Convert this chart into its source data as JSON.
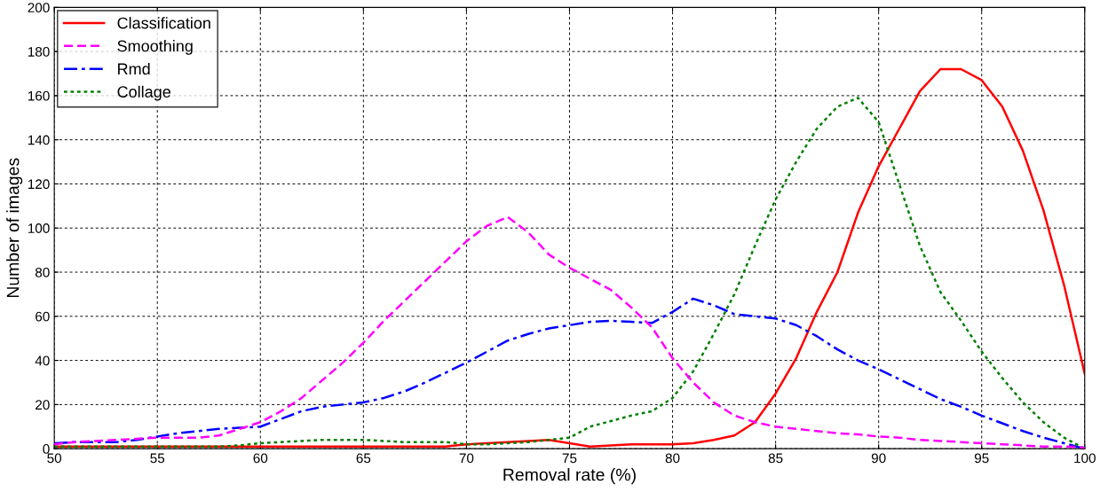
{
  "chart_data": {
    "type": "line",
    "xlabel": "Removal rate (%)",
    "ylabel": "Number of images",
    "x": [
      50,
      51,
      52,
      53,
      54,
      55,
      56,
      57,
      58,
      59,
      60,
      61,
      62,
      63,
      64,
      65,
      66,
      67,
      68,
      69,
      70,
      71,
      72,
      73,
      74,
      75,
      76,
      77,
      78,
      79,
      80,
      81,
      82,
      83,
      84,
      85,
      86,
      87,
      88,
      89,
      90,
      91,
      92,
      93,
      94,
      95,
      96,
      97,
      98,
      99,
      100
    ],
    "series": [
      {
        "name": "Classification",
        "color": "#ff0000",
        "line_style": "solid",
        "values": [
          1,
          1,
          1,
          1,
          1,
          1,
          1,
          1,
          1,
          1,
          1,
          1,
          1,
          1,
          1,
          1,
          1,
          1,
          1,
          1,
          2,
          2.5,
          3,
          3.5,
          4,
          2.5,
          1,
          1.5,
          2,
          2,
          2,
          2.5,
          4,
          6,
          12,
          25,
          41,
          62,
          80,
          107,
          128,
          145,
          162,
          172,
          172,
          167,
          155,
          135,
          108,
          74,
          34
        ]
      },
      {
        "name": "Smoothing",
        "color": "#ff00ff",
        "line_style": "dashed",
        "values": [
          2,
          3,
          3.5,
          4,
          4.5,
          5,
          5,
          5,
          6,
          9,
          12,
          17,
          23,
          31,
          39,
          48,
          58,
          67,
          76,
          85,
          94,
          101,
          105,
          98,
          88,
          82,
          77,
          72,
          64,
          55,
          41,
          30,
          21,
          15,
          12,
          10,
          9,
          8,
          7,
          6.5,
          5.5,
          5,
          4,
          3.5,
          3,
          2.5,
          2,
          1.5,
          1,
          1,
          0.5
        ]
      },
      {
        "name": "Rmd",
        "color": "#0000ff",
        "line_style": "dashdot",
        "values": [
          2.5,
          3,
          3,
          3,
          4,
          5.5,
          7,
          8,
          9,
          9.5,
          10,
          13.5,
          17,
          19,
          20,
          21,
          23,
          26,
          30,
          34.5,
          39,
          44,
          49,
          52,
          54.5,
          56,
          57.5,
          58,
          57.5,
          57,
          62,
          68,
          65,
          61,
          60,
          59,
          56,
          51,
          45,
          40,
          36,
          31.5,
          27,
          22.5,
          19,
          15,
          11.5,
          8,
          5,
          2.5,
          0
        ]
      },
      {
        "name": "Collage",
        "color": "#008000",
        "line_style": "dotted",
        "values": [
          1,
          1,
          1,
          1,
          1,
          1,
          1,
          1,
          1,
          1.5,
          2.5,
          3,
          3.5,
          4,
          4,
          4,
          3.5,
          3,
          3,
          3,
          2,
          2,
          2.5,
          3,
          4,
          5,
          10,
          12.5,
          15,
          17,
          23,
          35,
          52,
          70,
          92,
          113,
          130,
          145,
          155,
          159,
          148,
          120,
          92,
          71,
          58,
          44,
          32,
          21,
          12,
          5,
          0
        ]
      }
    ],
    "xlim": [
      50,
      100
    ],
    "xticks": [
      50,
      55,
      60,
      65,
      70,
      75,
      80,
      85,
      90,
      95,
      100
    ],
    "ylim": [
      0,
      200
    ],
    "yticks": [
      0,
      20,
      40,
      60,
      80,
      100,
      120,
      140,
      160,
      180,
      200
    ],
    "grid": true,
    "legend": "top left",
    "marker": "none"
  }
}
